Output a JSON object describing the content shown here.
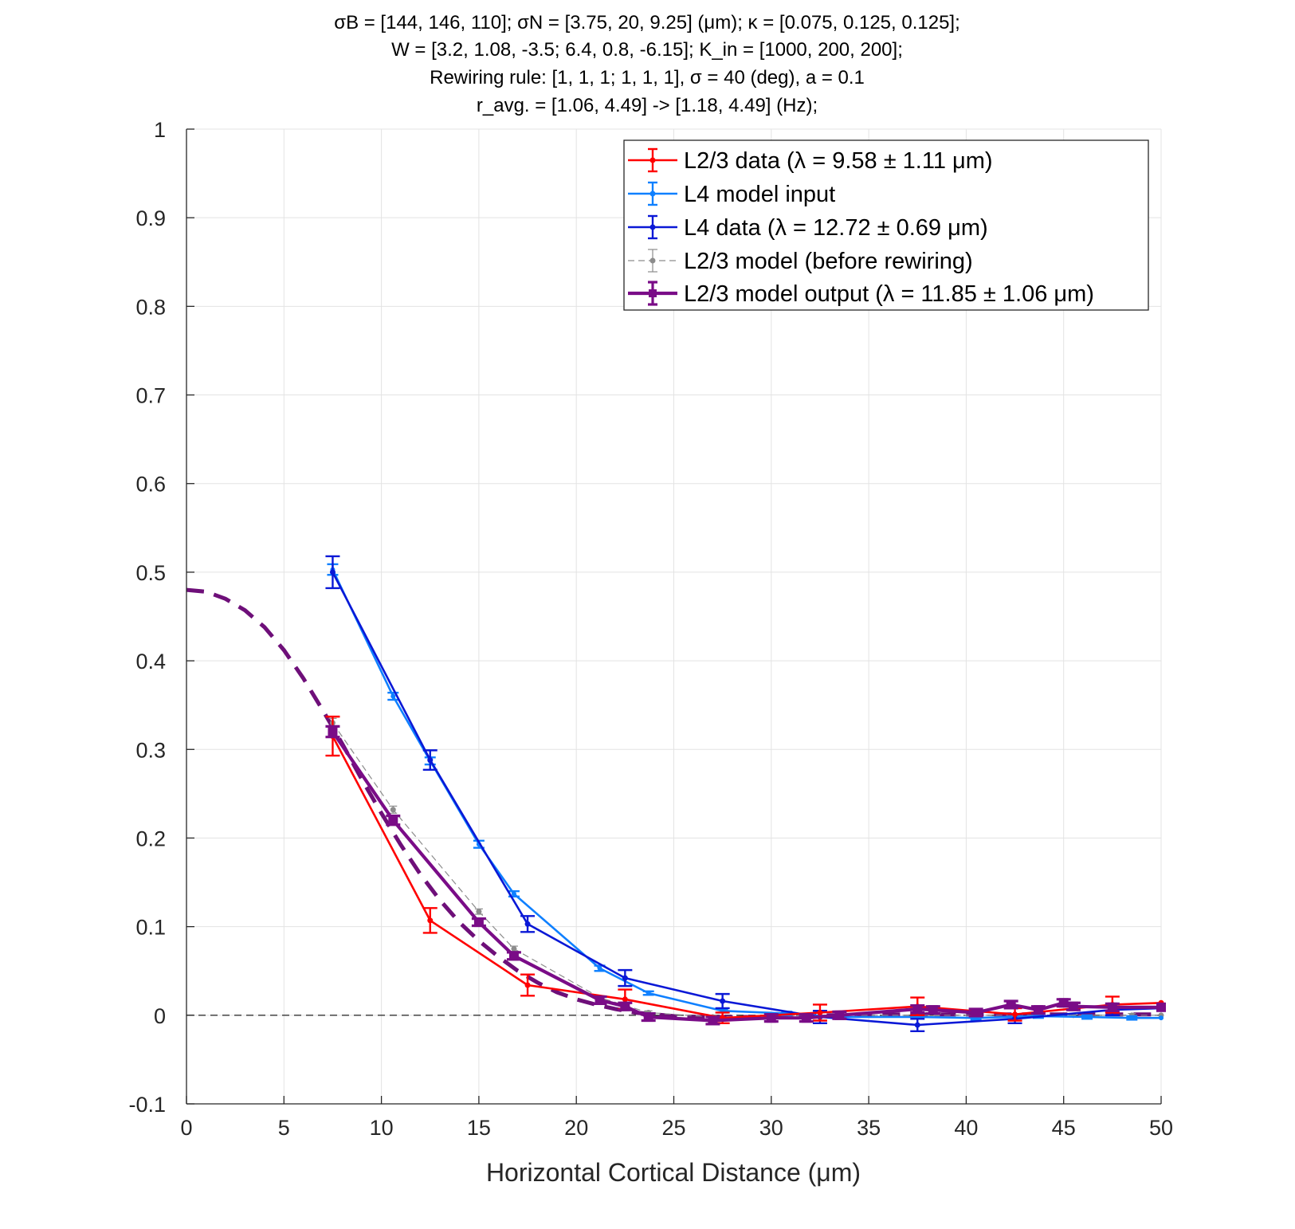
{
  "figure": {
    "title_lines": [
      "σB = [144, 146, 110]; σN = [3.75, 20, 9.25] (μm); κ = [0.075, 0.125, 0.125];",
      "W = [3.2, 1.08, -3.5; 6.4, 0.8, -6.15]; K_in = [1000, 200, 200];",
      "Rewiring rule: [1, 1, 1; 1, 1, 1], σ = 40 (deg), a = 0.1",
      "r_avg. = [1.06, 4.49] -> [1.18, 4.49] (Hz);"
    ]
  },
  "chart_data": {
    "type": "line",
    "title": "σB = [144, 146, 110]; σN = [3.75, 20, 9.25] (μm); κ = [0.075, 0.125, 0.125]; W = [3.2, 1.08, -3.5; 6.4, 0.8, -6.15]; K_in = [1000, 200, 200]; Rewiring rule: [1, 1, 1; 1, 1, 1], σ = 40 (deg), a = 0.1 r_avg. = [1.06, 4.49] -> [1.18, 4.49] (Hz);",
    "xlabel": "Horizontal Cortical Distance (μm)",
    "ylabel": "",
    "xlim": [
      0,
      50
    ],
    "ylim": [
      -0.1,
      1
    ],
    "xticks": [
      0,
      5,
      10,
      15,
      20,
      25,
      30,
      35,
      40,
      45,
      50
    ],
    "yticks": [
      -0.1,
      0,
      0.1,
      0.2,
      0.3,
      0.4,
      0.5,
      0.6,
      0.7,
      0.8,
      0.9,
      1
    ],
    "ytick_labels": [
      "-0.1",
      "0",
      "0.1",
      "0.2",
      "0.3",
      "0.4",
      "0.5",
      "0.6",
      "0.7",
      "0.8",
      "0.9",
      "1"
    ],
    "grid": true,
    "legend_position": "top-right",
    "zero_line": {
      "y": 0,
      "color": "#333333",
      "style": "dashed"
    },
    "series": [
      {
        "name": "L2/3 data (λ = 9.58 ± 1.11 μm)",
        "color": "#ff0000",
        "style": "solid",
        "x": [
          7.5,
          12.5,
          17.5,
          22.5,
          27.5,
          32.5,
          37.5,
          42.5,
          47.5,
          50
        ],
        "y": [
          0.315,
          0.107,
          0.034,
          0.018,
          -0.003,
          0.003,
          0.01,
          0.001,
          0.012,
          0.014
        ],
        "err": [
          0.022,
          0.014,
          0.012,
          0.011,
          0.006,
          0.009,
          0.01,
          0.007,
          0.009,
          0
        ]
      },
      {
        "name": "L4 model input",
        "color": "#0f80ff",
        "style": "solid",
        "x": [
          7.5,
          10.6,
          12.5,
          15,
          16.8,
          21.2,
          23.7,
          27.5,
          30.8,
          33.5,
          37.5,
          40.5,
          43.7,
          46.2,
          48.5,
          50
        ],
        "y": [
          0.503,
          0.36,
          0.287,
          0.193,
          0.137,
          0.053,
          0.025,
          0.005,
          0.002,
          -0.002,
          -0.002,
          -0.003,
          -0.001,
          -0.002,
          -0.003,
          -0.003
        ],
        "err": [
          0.006,
          0.004,
          0.004,
          0.004,
          0.003,
          0.003,
          0.002,
          0.002,
          0.002,
          0.002,
          0.002,
          0.002,
          0.002,
          0.002,
          0.002,
          0
        ]
      },
      {
        "name": "L4 data (λ = 12.72 ± 0.69 μm)",
        "color": "#0a18d6",
        "style": "solid",
        "x": [
          7.5,
          12.5,
          17.5,
          22.5,
          27.5,
          32.5,
          37.5,
          42.5,
          47.5,
          50
        ],
        "y": [
          0.5,
          0.288,
          0.103,
          0.042,
          0.016,
          -0.002,
          -0.011,
          -0.004,
          0.006,
          0.008
        ],
        "err": [
          0.018,
          0.011,
          0.009,
          0.009,
          0.008,
          0.007,
          0.007,
          0.005,
          0.006,
          0
        ]
      },
      {
        "name": "L2/3 model (before rewiring)",
        "color": "#8c8c8c",
        "style": "dashed",
        "x": [
          7.5,
          10.6,
          15,
          16.8,
          21.2,
          23.7,
          27,
          31,
          33.5,
          38.5,
          40.5,
          43.7,
          45.5,
          48.5,
          50
        ],
        "y": [
          0.33,
          0.232,
          0.117,
          0.075,
          0.02,
          0.003,
          -0.002,
          0,
          0,
          0,
          0,
          0,
          0,
          0,
          0
        ],
        "err": [
          0.005,
          0.004,
          0.003,
          0.003,
          0.002,
          0.002,
          0.002,
          0.002,
          0.002,
          0.002,
          0.002,
          0.002,
          0.002,
          0.002,
          0
        ]
      },
      {
        "name": "L2/3 model output (λ = 11.85 ± 1.06 μm)",
        "color": "#7a0c87",
        "style": "solid",
        "x": [
          7.5,
          10.6,
          15,
          16.8,
          21.2,
          22.5,
          23.7,
          27,
          30,
          31.8,
          33.5,
          37.5,
          38.3,
          40.5,
          42.3,
          43.7,
          45,
          45.5,
          47.5,
          50
        ],
        "y": [
          0.32,
          0.22,
          0.105,
          0.067,
          0.017,
          0.01,
          -0.002,
          -0.006,
          -0.003,
          -0.003,
          0,
          0.007,
          0.006,
          0.003,
          0.012,
          0.006,
          0.014,
          0.01,
          0.009,
          0.009
        ],
        "err": [
          0.006,
          0.005,
          0.004,
          0.004,
          0.004,
          0.004,
          0.004,
          0.004,
          0.004,
          0.004,
          0.004,
          0.004,
          0.004,
          0.004,
          0.004,
          0.004,
          0.004,
          0.004,
          0.004,
          0
        ]
      }
    ],
    "fit_curve": {
      "color": "#6e0f79",
      "style": "dashed",
      "x": [
        0,
        1,
        2,
        3,
        4,
        5,
        6,
        7,
        8,
        9,
        10,
        11,
        12,
        13,
        14,
        15,
        16,
        17,
        18,
        19,
        20,
        21,
        22,
        23,
        24,
        25,
        26,
        27,
        28,
        29,
        30,
        31,
        32,
        33,
        34,
        35,
        36,
        37,
        38,
        39,
        40,
        41,
        42,
        43,
        44,
        45,
        46,
        47,
        48,
        49,
        50
      ],
      "y": [
        0.48,
        0.478,
        0.47,
        0.457,
        0.438,
        0.412,
        0.38,
        0.344,
        0.306,
        0.266,
        0.228,
        0.192,
        0.159,
        0.13,
        0.105,
        0.084,
        0.066,
        0.05,
        0.037,
        0.026,
        0.018,
        0.012,
        0.007,
        0.003,
        0.001,
        -0.001,
        -0.002,
        -0.002,
        -0.002,
        -0.002,
        -0.002,
        -0.001,
        -0.001,
        0,
        0,
        0,
        0.001,
        0.001,
        0.001,
        0.001,
        0.001,
        0.001,
        0.001,
        0.001,
        0.001,
        0.001,
        0.001,
        0.001,
        0.001,
        0.001,
        0.001
      ]
    }
  }
}
